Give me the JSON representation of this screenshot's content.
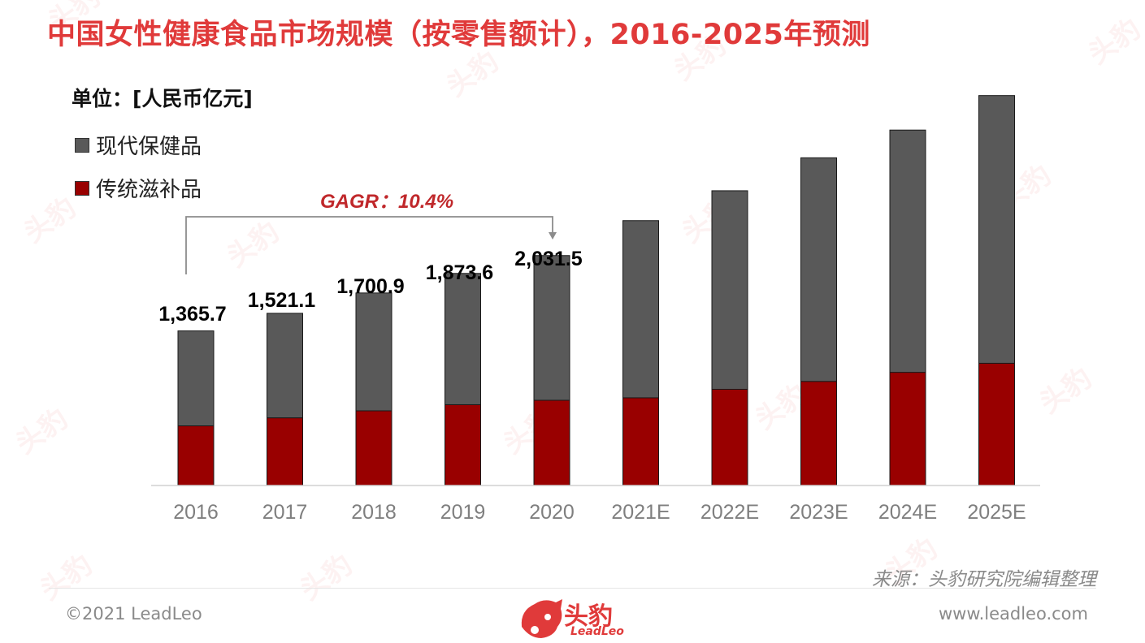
{
  "title": "中国女性健康食品市场规模（按零售额计），2016-2025年预测",
  "unit": "单位：[人民币亿元]",
  "legend": [
    {
      "label": "现代保健品",
      "color": "#595959"
    },
    {
      "label": "传统滋补品",
      "color": "#990000"
    }
  ],
  "cagr_label": "GAGR：10.4%",
  "source": "来源：头豹研究院编辑整理",
  "footer": {
    "copyright": "©2021 LeadLeo",
    "website": "www.leadleo.com",
    "logo_cn": "头豹",
    "logo_en": "LeadLeo"
  },
  "colors": {
    "accent": "#e03a3a",
    "modern": "#595959",
    "traditional": "#990000"
  },
  "chart_data": {
    "type": "bar",
    "stacked": true,
    "categories": [
      "2016",
      "2017",
      "2018",
      "2019",
      "2020",
      "2021E",
      "2022E",
      "2023E",
      "2024E",
      "2025E"
    ],
    "series": [
      {
        "name": "传统滋补品",
        "values": [
          527,
          598,
          660,
          714,
          753,
          775,
          850,
          920,
          1000,
          1080
        ]
      },
      {
        "name": "现代保健品",
        "values": [
          838.7,
          923.1,
          1040.9,
          1159.6,
          1278.5,
          1565,
          1754,
          1975,
          2140,
          2365
        ]
      }
    ],
    "total_labels": [
      "1,365.7",
      "1,521.1",
      "1,700.9",
      "1,873.6",
      "2,031.5",
      "",
      "",
      "",
      "",
      ""
    ],
    "ylim": [
      0,
      3500
    ],
    "grid": false,
    "legend_position": "top-left"
  }
}
